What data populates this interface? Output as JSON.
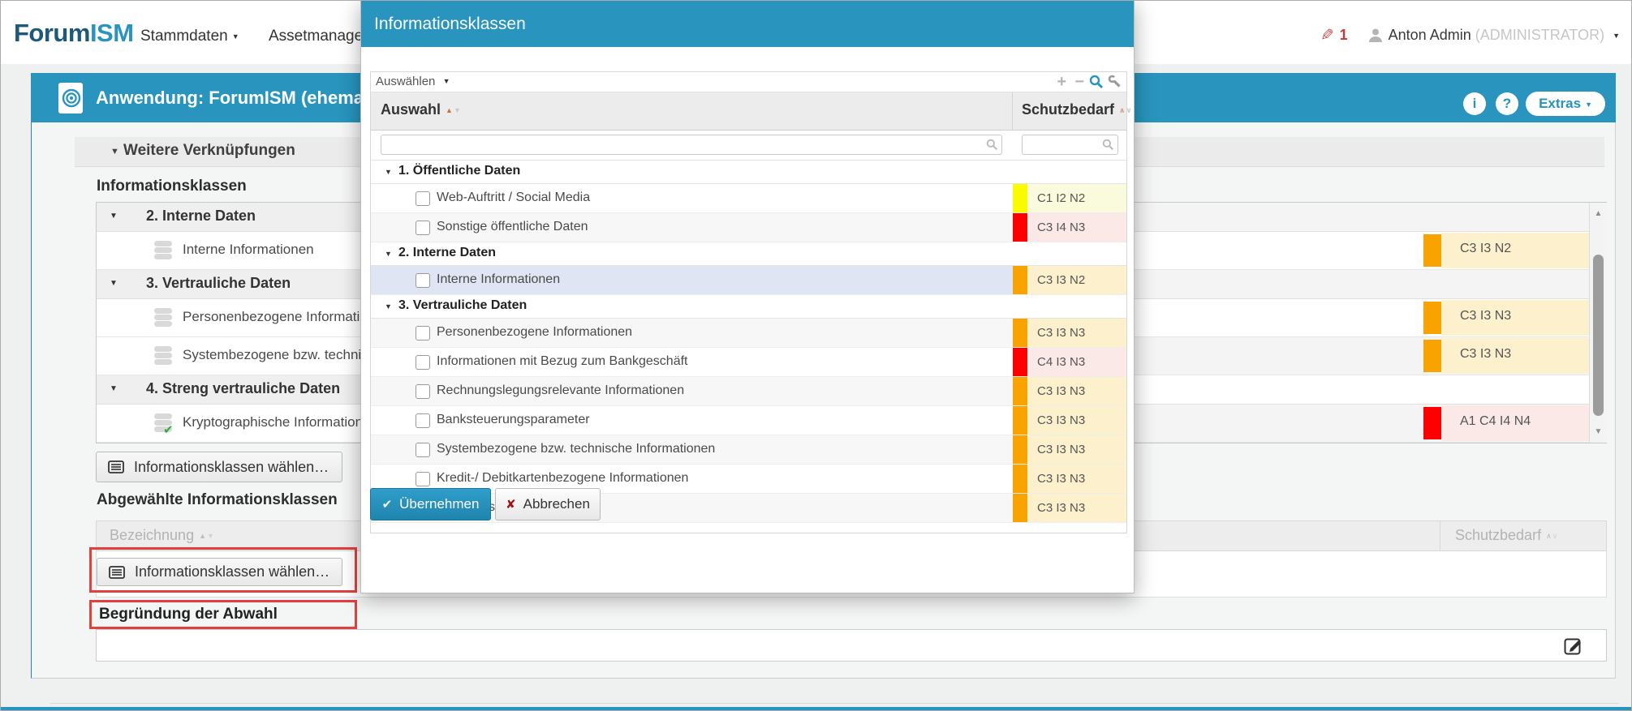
{
  "colors": {
    "brand_blue": "#2994bd",
    "brand_dark": "#1d5a7a",
    "annotation_red": "#e2403d",
    "highlight_row": "#dfe5f2",
    "orange": "#f9a300",
    "red": "#fe0000",
    "yellow": "#fafa00",
    "orange_bg": "#fcf0cd",
    "red_bg": "#fbe9e8",
    "yellow_bg": "#fafadc"
  },
  "topbar": {
    "brand_primary": "Forum",
    "brand_secondary": "ISM",
    "nav": [
      {
        "label": "Stammdaten"
      },
      {
        "label": "Assetmanagement"
      }
    ],
    "edit_count": "1",
    "user_name": "Anton Admin",
    "user_role": "(ADMINISTRATOR)"
  },
  "appbar": {
    "title": "Anwendung: ForumISM (ehemal",
    "info_label": "i",
    "help_label": "?",
    "extras_label": "Extras"
  },
  "panel": {
    "section_header": "Weitere Verknüpfungen",
    "infoclasses_title": "Informationsklassen",
    "choose_button_label": "Informationsklassen wählen…",
    "deselected_title": "Abgewählte Informationsklassen",
    "reason_label": "Begründung der Abwahl"
  },
  "main_table": {
    "groups": [
      {
        "label": "2. Interne Daten",
        "items": [
          {
            "label": "Interne Informationen",
            "badge": "C3 I3 N2",
            "color": "orange"
          }
        ]
      },
      {
        "label": "3. Vertrauliche Daten",
        "items": [
          {
            "label": "Personenbezogene Informationen",
            "badge": "C3 I3 N3",
            "color": "orange"
          },
          {
            "label": "Systembezogene bzw. technische Informationen",
            "badge": "C3 I3 N3",
            "color": "orange"
          }
        ]
      },
      {
        "label": "4. Streng vertrauliche Daten",
        "items": [
          {
            "label": "Kryptographische Informationen",
            "badge": "A1 C4 I4 N4",
            "color": "red",
            "checked": true
          }
        ]
      }
    ]
  },
  "lower_table": {
    "col_bezeichnung": "Bezeichnung",
    "col_schutzbedarf": "Schutzbedarf"
  },
  "modal": {
    "title": "Informationsklassen",
    "select_menu_label": "Auswählen",
    "col_auswahl": "Auswahl",
    "col_schutzbedarf": "Schutzbedarf",
    "groups": [
      {
        "label": "1. Öffentliche Daten",
        "items": [
          {
            "label": "Web-Auftritt / Social Media",
            "badge": "C1 I2 N2",
            "color": "yellow"
          },
          {
            "label": "Sonstige öffentliche Daten",
            "badge": "C3 I4 N3",
            "color": "red"
          }
        ]
      },
      {
        "label": "2. Interne Daten",
        "items": [
          {
            "label": "Interne Informationen",
            "badge": "C3 I3 N2",
            "color": "orange",
            "highlighted": true
          }
        ]
      },
      {
        "label": "3. Vertrauliche Daten",
        "items": [
          {
            "label": "Personenbezogene Informationen",
            "badge": "C3 I3 N3",
            "color": "orange"
          },
          {
            "label": "Informationen mit Bezug zum Bankgeschäft",
            "badge": "C4 I3 N3",
            "color": "red"
          },
          {
            "label": "Rechnungslegungsrelevante Informationen",
            "badge": "C3 I3 N3",
            "color": "orange"
          },
          {
            "label": "Banksteuerungsparameter",
            "badge": "C3 I3 N3",
            "color": "orange"
          },
          {
            "label": "Systembezogene bzw. technische Informationen",
            "badge": "C3 I3 N3",
            "color": "orange"
          },
          {
            "label": "Kredit-/ Debitkartenbezogene Informationen",
            "badge": "C3 I3 N3",
            "color": "orange"
          },
          {
            "label": "Geschäftsgeheimnis",
            "badge": "C3 I3 N3",
            "color": "orange"
          }
        ]
      }
    ],
    "apply_label": "Übernehmen",
    "cancel_label": "Abbrechen"
  }
}
